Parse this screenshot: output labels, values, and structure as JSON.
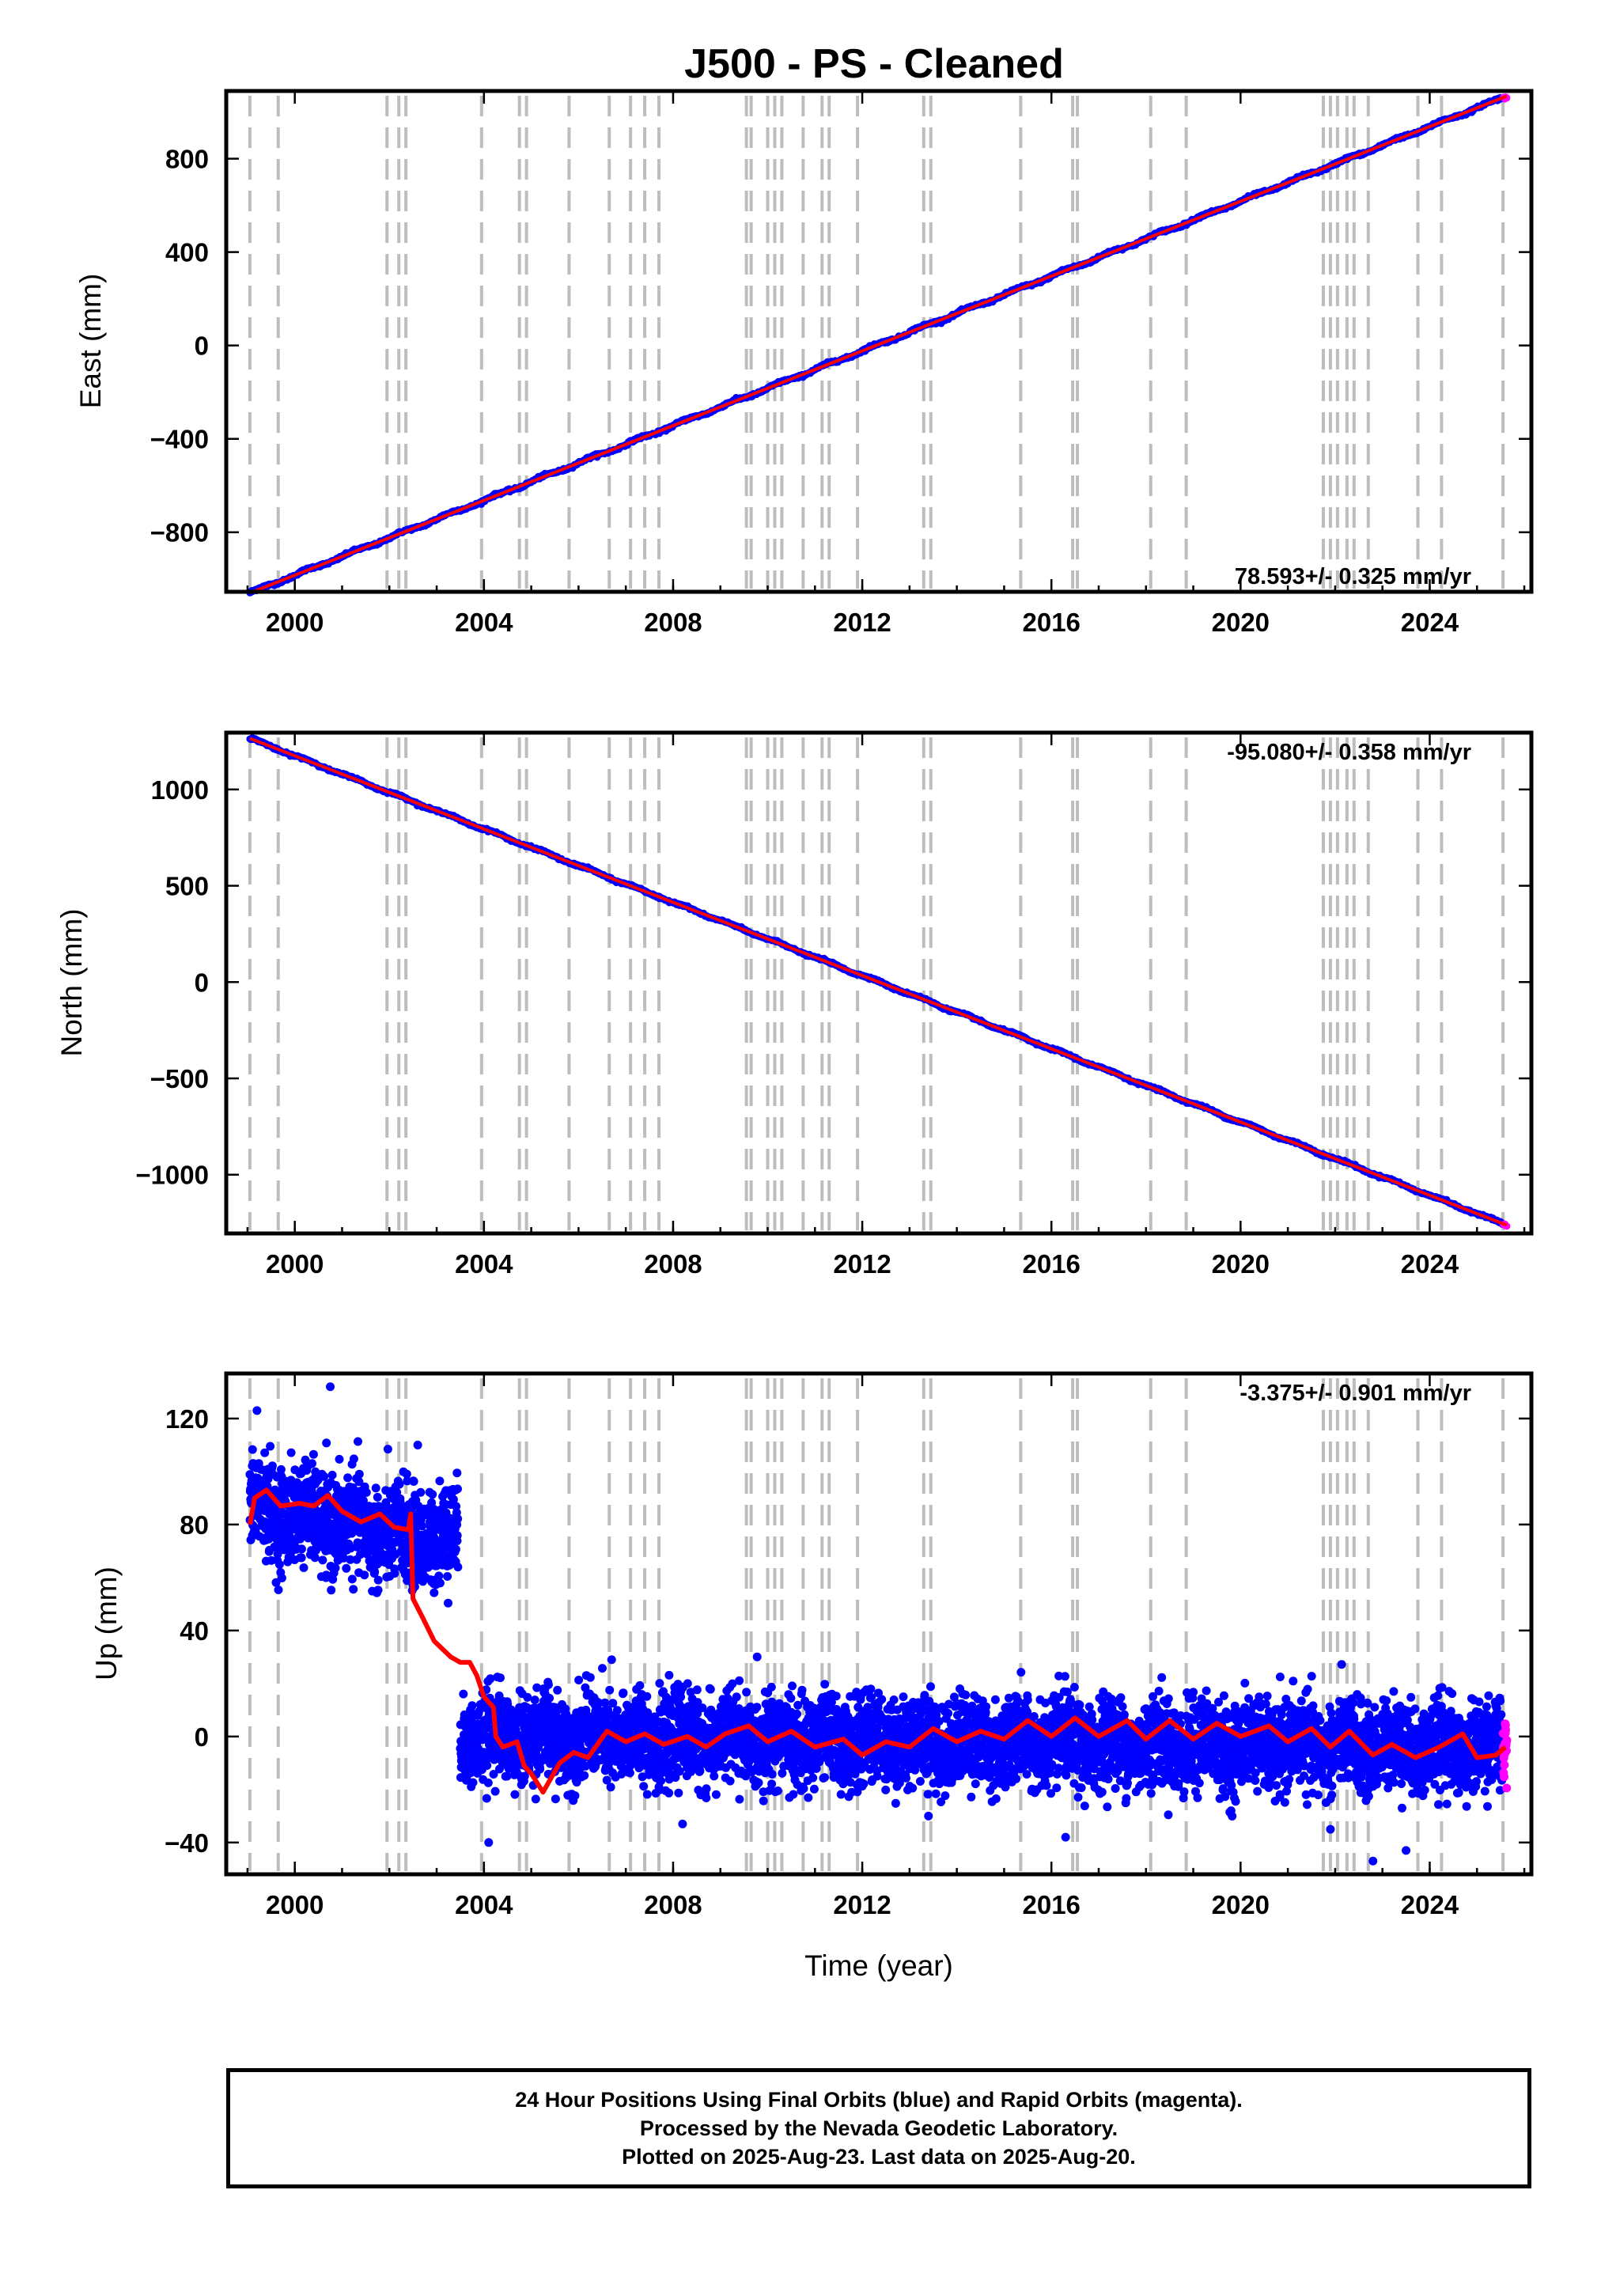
{
  "title": "J500  - PS - Cleaned",
  "colors": {
    "final_orbits": "#0000ff",
    "rapid_orbits": "#ff00ff",
    "model": "#ff0000",
    "event_lines": "#bdbdbd"
  },
  "footer": {
    "line1": "24 Hour Positions Using Final Orbits (blue) and Rapid Orbits (magenta).",
    "line2": "Processed by the Nevada Geodetic Laboratory.",
    "line3": "Plotted on 2025-Aug-23. Last data on 2025-Aug-20."
  },
  "chart_data": [
    {
      "type": "scatter",
      "ylabel": "East (mm)",
      "xlabel": "",
      "xlim": [
        1998.55,
        2026.15
      ],
      "ylim": [
        -1055,
        1090
      ],
      "x_ticks": [
        2000,
        2004,
        2008,
        2012,
        2016,
        2020,
        2024
      ],
      "x_tick_labels": [
        "2000",
        "2004",
        "2008",
        "2012",
        "2016",
        "2020",
        "2024"
      ],
      "y_ticks": [
        -800,
        -400,
        0,
        400,
        800
      ],
      "y_tick_labels": [
        "−800",
        "−400",
        "0",
        "400",
        "800"
      ],
      "rate_label": "78.593+/- 0.325 mm/yr",
      "rate_position": "bottom-right",
      "start": [
        1999.05,
        -1060
      ],
      "end": [
        2025.63,
        1068
      ],
      "seasonal_amplitude": 5,
      "noise": 3
    },
    {
      "type": "scatter",
      "ylabel": "North (mm)",
      "xlabel": "",
      "xlim": [
        1998.55,
        2026.15
      ],
      "ylim": [
        -1305,
        1295
      ],
      "x_ticks": [
        2000,
        2004,
        2008,
        2012,
        2016,
        2020,
        2024
      ],
      "x_tick_labels": [
        "2000",
        "2004",
        "2008",
        "2012",
        "2016",
        "2020",
        "2024"
      ],
      "y_ticks": [
        -1000,
        -500,
        0,
        500,
        1000
      ],
      "y_tick_labels": [
        "−1000",
        "−500",
        "0",
        "500",
        "1000"
      ],
      "rate_label": "-95.080+/- 0.358 mm/yr",
      "rate_position": "top-right",
      "start": [
        1999.05,
        1265
      ],
      "end": [
        2025.63,
        -1262
      ],
      "seasonal_amplitude": 5,
      "noise": 3
    },
    {
      "type": "scatter",
      "ylabel": "Up (mm)",
      "xlabel": "Time (year)",
      "xlim": [
        1998.55,
        2026.15
      ],
      "ylim": [
        -52,
        137
      ],
      "x_ticks": [
        2000,
        2004,
        2008,
        2012,
        2016,
        2020,
        2024
      ],
      "x_tick_labels": [
        "2000",
        "2004",
        "2008",
        "2012",
        "2016",
        "2020",
        "2024"
      ],
      "y_ticks": [
        -40,
        0,
        40,
        80,
        120
      ],
      "y_tick_labels": [
        "−40",
        "0",
        "40",
        "80",
        "120"
      ],
      "rate_label": "-3.375+/- 0.901 mm/yr",
      "rate_position": "top-right",
      "segments": [
        {
          "x_range": [
            1999.05,
            2002.5
          ],
          "mean": 87,
          "trend_per_yr": -3.5,
          "scatter": 9
        },
        {
          "x_range": [
            2002.5,
            2003.45
          ],
          "mean": 75,
          "trend_per_yr": 0,
          "scatter": 9
        },
        {
          "x_range": [
            2003.5,
            2025.63
          ],
          "mean": 0,
          "trend_per_yr": -0.2,
          "scatter": 8
        }
      ],
      "outliers": [
        [
          2000.75,
          132
        ],
        [
          1999.2,
          123
        ],
        [
          2002.6,
          110
        ],
        [
          2006.7,
          29
        ],
        [
          2022.8,
          -47
        ],
        [
          2023.5,
          -43
        ],
        [
          2004.1,
          -40
        ],
        [
          2008.2,
          -33
        ],
        [
          2016.3,
          -38
        ],
        [
          2019.8,
          -28
        ],
        [
          2021.9,
          -35
        ],
        [
          2013.4,
          -30
        ]
      ],
      "model_line": [
        [
          1999.05,
          80
        ],
        [
          1999.15,
          90
        ],
        [
          1999.4,
          93
        ],
        [
          1999.7,
          87
        ],
        [
          2000.1,
          88
        ],
        [
          2000.4,
          87
        ],
        [
          2000.7,
          91
        ],
        [
          2001.0,
          85
        ],
        [
          2001.4,
          81
        ],
        [
          2001.8,
          84
        ],
        [
          2002.1,
          79
        ],
        [
          2002.4,
          78
        ],
        [
          2002.45,
          84
        ],
        [
          2002.5,
          52
        ],
        [
          2002.7,
          45
        ],
        [
          2002.95,
          36
        ],
        [
          2003.3,
          30
        ],
        [
          2003.5,
          28
        ],
        [
          2003.7,
          28
        ],
        [
          2003.85,
          23
        ],
        [
          2004.0,
          15
        ],
        [
          2004.2,
          11
        ],
        [
          2004.25,
          0
        ],
        [
          2004.4,
          -4
        ],
        [
          2004.7,
          -2
        ],
        [
          2004.85,
          -11
        ],
        [
          2005.0,
          -14
        ],
        [
          2005.25,
          -21
        ],
        [
          2005.6,
          -10
        ],
        [
          2005.9,
          -6
        ],
        [
          2006.2,
          -8
        ],
        [
          2006.6,
          2
        ],
        [
          2007.0,
          -2
        ],
        [
          2007.4,
          1
        ],
        [
          2007.8,
          -3
        ],
        [
          2008.3,
          0
        ],
        [
          2008.7,
          -4
        ],
        [
          2009.1,
          1
        ],
        [
          2009.6,
          4
        ],
        [
          2010.0,
          -2
        ],
        [
          2010.5,
          2
        ],
        [
          2011.0,
          -4
        ],
        [
          2011.6,
          -1
        ],
        [
          2012.0,
          -7
        ],
        [
          2012.5,
          -2
        ],
        [
          2013.0,
          -4
        ],
        [
          2013.5,
          3
        ],
        [
          2014.0,
          -2
        ],
        [
          2014.5,
          2
        ],
        [
          2015.0,
          -1
        ],
        [
          2015.5,
          6
        ],
        [
          2016.0,
          0
        ],
        [
          2016.5,
          7
        ],
        [
          2017.0,
          0
        ],
        [
          2017.6,
          6
        ],
        [
          2018.0,
          -1
        ],
        [
          2018.5,
          6
        ],
        [
          2019.0,
          -1
        ],
        [
          2019.5,
          5
        ],
        [
          2020.0,
          0
        ],
        [
          2020.6,
          4
        ],
        [
          2021.0,
          -2
        ],
        [
          2021.5,
          3
        ],
        [
          2021.9,
          -4
        ],
        [
          2022.3,
          2
        ],
        [
          2022.8,
          -7
        ],
        [
          2023.2,
          -3
        ],
        [
          2023.7,
          -8
        ],
        [
          2024.2,
          -4
        ],
        [
          2024.7,
          1
        ],
        [
          2025.0,
          -8
        ],
        [
          2025.4,
          -7
        ],
        [
          2025.6,
          -4
        ]
      ]
    }
  ],
  "event_years": [
    1999.05,
    1999.65,
    2001.95,
    2002.2,
    2002.35,
    2003.95,
    2004.75,
    2004.9,
    2005.8,
    2006.65,
    2007.1,
    2007.4,
    2007.7,
    2009.55,
    2009.65,
    2010.0,
    2010.15,
    2010.3,
    2010.75,
    2011.15,
    2011.3,
    2011.9,
    2013.3,
    2013.45,
    2015.35,
    2016.45,
    2016.55,
    2018.1,
    2018.85,
    2021.75,
    2021.9,
    2022.05,
    2022.25,
    2022.4,
    2022.7,
    2023.75,
    2024.25,
    2025.55
  ]
}
